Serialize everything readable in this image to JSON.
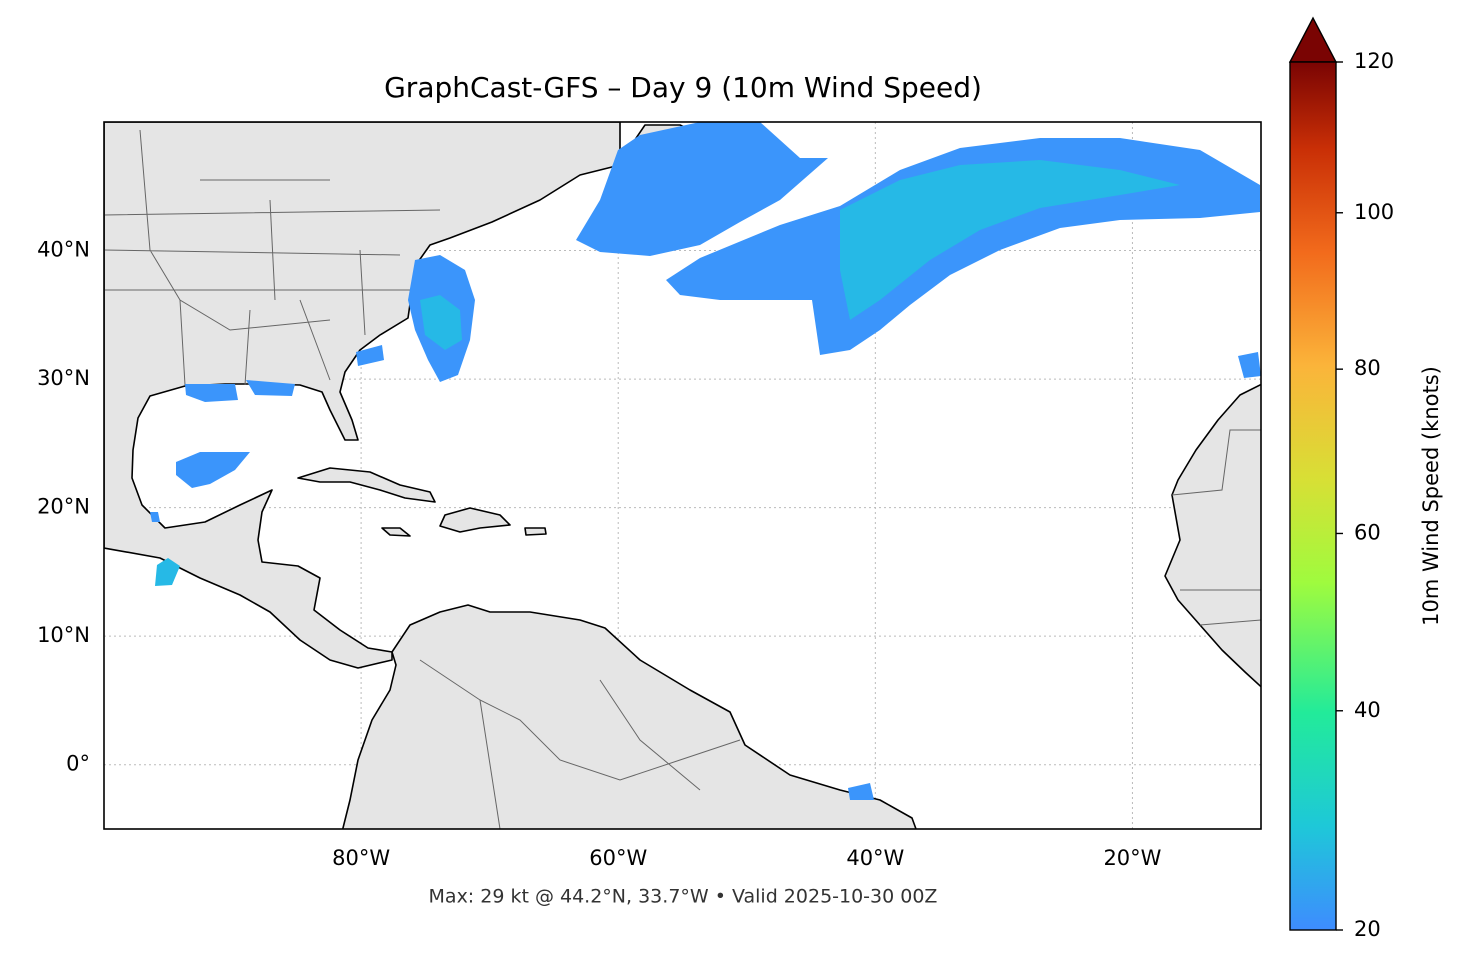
{
  "map": {
    "title": "GraphCast-GFS – Day 9 (10m Wind Speed)",
    "footer": "Max: 29 kt @ 44.2°N, 33.7°W • Valid 2025-10-30 00Z",
    "xlim": [
      -100,
      -10
    ],
    "ylim": [
      -5,
      50
    ],
    "xticks": [
      {
        "value": -80,
        "label": "80°W"
      },
      {
        "value": -60,
        "label": "60°W"
      },
      {
        "value": -40,
        "label": "40°W"
      },
      {
        "value": -20,
        "label": "20°W"
      }
    ],
    "yticks": [
      {
        "value": 0,
        "label": "0°"
      },
      {
        "value": 10,
        "label": "10°N"
      },
      {
        "value": 20,
        "label": "20°N"
      },
      {
        "value": 30,
        "label": "30°N"
      },
      {
        "value": 40,
        "label": "40°N"
      }
    ],
    "grid": true,
    "colorbar": {
      "label": "10m Wind Speed (knots)",
      "lim": [
        20,
        120
      ],
      "ticks": [
        20,
        40,
        60,
        80,
        100,
        120
      ]
    }
  }
}
